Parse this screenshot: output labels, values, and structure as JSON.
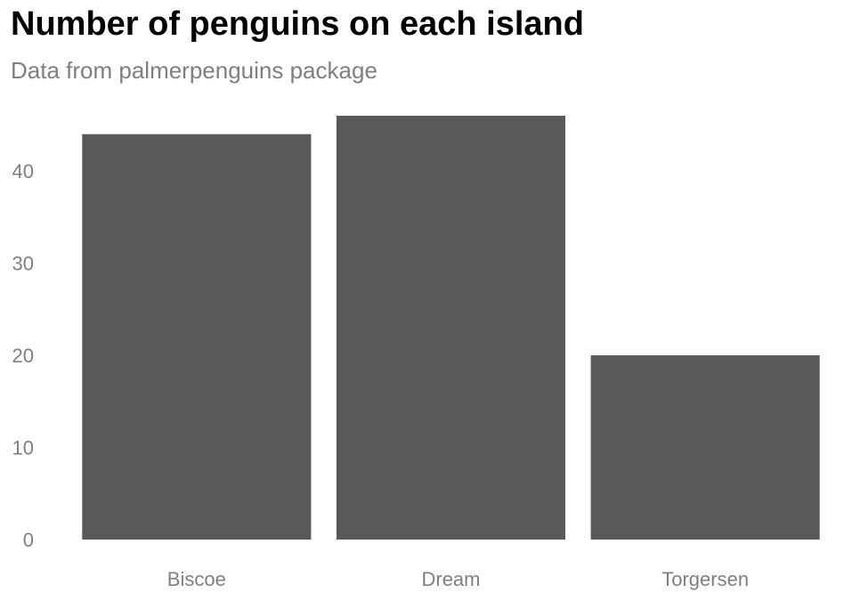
{
  "colors": {
    "bar": "#595959",
    "muted_text": "#7f7f7f",
    "title": "#000000",
    "background": "#ffffff"
  },
  "chart_data": {
    "type": "bar",
    "title": "Number of penguins on each island",
    "subtitle": "Data from palmerpenguins package",
    "categories": [
      "Biscoe",
      "Dream",
      "Torgersen"
    ],
    "values": [
      44,
      46,
      20
    ],
    "xlabel": "",
    "ylabel": "",
    "ylim": [
      0,
      46
    ],
    "yticks": [
      0,
      10,
      20,
      30,
      40
    ],
    "grid": false,
    "legend": "none"
  }
}
